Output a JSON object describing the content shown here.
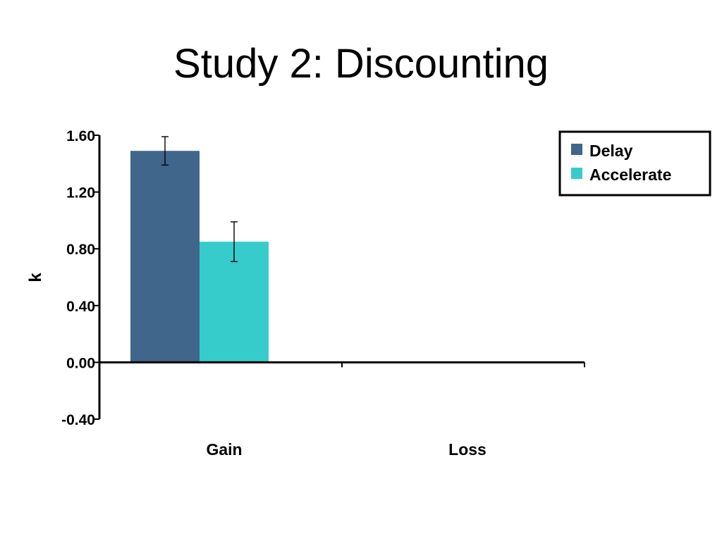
{
  "slide": {
    "title": "Study 2: Discounting"
  },
  "colors": {
    "delay": "#41668c",
    "accelerate": "#36cccc",
    "axis": "#000000"
  },
  "chart_data": {
    "type": "bar",
    "title": "",
    "xlabel": "",
    "ylabel": "k",
    "ylim": [
      -0.4,
      1.6
    ],
    "yticks": [
      1.6,
      1.2,
      0.8,
      0.4,
      0.0,
      -0.4
    ],
    "ytick_labels": [
      "1.60",
      "1.20",
      "0.80",
      "0.40",
      "0.00",
      "-0.40"
    ],
    "categories": [
      "Gain",
      "Loss"
    ],
    "series": [
      {
        "name": "Delay",
        "color": "#41668c",
        "values": [
          1.49,
          0
        ],
        "errors": [
          0.1,
          null
        ]
      },
      {
        "name": "Accelerate",
        "color": "#36cccc",
        "values": [
          0.85,
          0
        ],
        "errors": [
          0.14,
          null
        ]
      }
    ],
    "legend": {
      "position": "top-right",
      "entries": [
        "Delay",
        "Accelerate"
      ]
    },
    "grid": false
  }
}
